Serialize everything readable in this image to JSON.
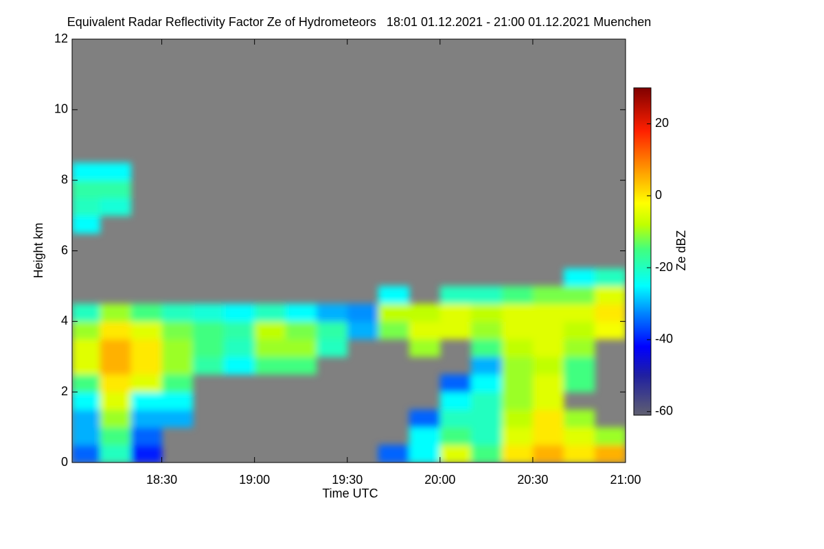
{
  "chart_data": {
    "type": "heatmap",
    "title": "Equivalent Radar Reflectivity Factor Ze of Hydrometeors   18:01 01.12.2021 - 21:00 01.12.2021 Muenchen",
    "x_label": "Time UTC",
    "y_label": "Height km",
    "colorbar_label": "Ze dBZ",
    "background": "#808080",
    "xlim": [
      1081,
      1260
    ],
    "xticks": [
      {
        "value": 1110,
        "label": "18:30"
      },
      {
        "value": 1140,
        "label": "19:00"
      },
      {
        "value": 1170,
        "label": "19:30"
      },
      {
        "value": 1200,
        "label": "20:00"
      },
      {
        "value": 1230,
        "label": "20:30"
      },
      {
        "value": 1260,
        "label": "21:00"
      }
    ],
    "ylim": [
      0,
      12
    ],
    "yticks": [
      0,
      2,
      4,
      6,
      8,
      10,
      12
    ],
    "zlim": [
      -61,
      30
    ],
    "zticks": [
      -60,
      -40,
      -20,
      0,
      20
    ],
    "colorscale": [
      [
        -61,
        "#606070"
      ],
      [
        -50,
        "#2020a0"
      ],
      [
        -42,
        "#0000ff"
      ],
      [
        -33,
        "#0080ff"
      ],
      [
        -25,
        "#00ffff"
      ],
      [
        -15,
        "#40ff80"
      ],
      [
        -8,
        "#c0ff00"
      ],
      [
        -2,
        "#ffff00"
      ],
      [
        8,
        "#ff9000"
      ],
      [
        18,
        "#ff2000"
      ],
      [
        30,
        "#800000"
      ]
    ],
    "x_bins": [
      1081,
      1090,
      1100,
      1110,
      1120,
      1130,
      1140,
      1150,
      1160,
      1170,
      1180,
      1190,
      1200,
      1210,
      1220,
      1230,
      1240,
      1250,
      1260
    ],
    "y_bins": [
      0,
      0.5,
      1,
      1.5,
      2,
      2.5,
      3,
      3.5,
      4,
      4.5,
      5,
      5.5,
      6,
      6.5,
      7,
      7.5,
      8,
      8.5,
      9
    ],
    "values": [
      [
        -35,
        -30,
        -30,
        -25,
        -15,
        -5,
        -5,
        -10,
        -20,
        null,
        null,
        null,
        null,
        -25,
        -20,
        -18,
        -25,
        null
      ],
      [
        -20,
        -15,
        -10,
        -5,
        0,
        5,
        5,
        0,
        -10,
        null,
        null,
        null,
        null,
        null,
        -22,
        -18,
        -25,
        null
      ],
      [
        -40,
        -35,
        -30,
        -25,
        -5,
        0,
        0,
        -5,
        -15,
        null,
        null,
        null,
        null,
        null,
        null,
        null,
        null,
        null
      ],
      [
        null,
        null,
        -30,
        -25,
        -15,
        -10,
        -10,
        -12,
        -20,
        null,
        null,
        null,
        null,
        null,
        null,
        null,
        null,
        null
      ],
      [
        null,
        null,
        null,
        null,
        null,
        -18,
        -15,
        -15,
        -22,
        null,
        null,
        null,
        null,
        null,
        null,
        null,
        null,
        null
      ],
      [
        null,
        null,
        null,
        null,
        null,
        -25,
        -20,
        -18,
        -25,
        null,
        null,
        null,
        null,
        null,
        null,
        null,
        null,
        null
      ],
      [
        null,
        null,
        null,
        null,
        null,
        -15,
        -10,
        -8,
        -20,
        null,
        null,
        null,
        null,
        null,
        null,
        null,
        null,
        null
      ],
      [
        null,
        null,
        null,
        null,
        null,
        -15,
        -10,
        -12,
        -25,
        null,
        null,
        null,
        null,
        null,
        null,
        null,
        null,
        null
      ],
      [
        null,
        null,
        null,
        null,
        null,
        null,
        -20,
        -18,
        -30,
        null,
        null,
        null,
        null,
        null,
        null,
        null,
        null,
        null
      ],
      [
        null,
        null,
        null,
        null,
        null,
        null,
        null,
        -30,
        -32,
        null,
        null,
        null,
        null,
        null,
        null,
        null,
        null,
        null
      ],
      [
        -35,
        null,
        null,
        null,
        null,
        null,
        null,
        -12,
        -8,
        -25,
        null,
        null,
        null,
        null,
        null,
        null,
        null,
        null
      ],
      [
        -25,
        -25,
        -35,
        null,
        null,
        null,
        -10,
        -5,
        -8,
        null,
        null,
        null,
        null,
        null,
        null,
        null,
        null,
        null
      ],
      [
        -5,
        -15,
        -20,
        -25,
        -35,
        null,
        null,
        -5,
        -5,
        -20,
        null,
        null,
        null,
        null,
        null,
        null,
        null,
        null
      ],
      [
        -15,
        -20,
        -20,
        -20,
        -25,
        -30,
        -15,
        -10,
        -8,
        -20,
        null,
        null,
        null,
        null,
        null,
        null,
        null,
        null
      ],
      [
        0,
        -5,
        -8,
        -10,
        -10,
        -10,
        -8,
        -5,
        -5,
        -15,
        null,
        null,
        null,
        null,
        null,
        null,
        null,
        null
      ],
      [
        5,
        0,
        0,
        -5,
        -5,
        -8,
        -5,
        -5,
        -5,
        -12,
        null,
        null,
        null,
        null,
        null,
        null,
        null,
        null
      ],
      [
        0,
        -5,
        -10,
        null,
        -15,
        -15,
        -10,
        -8,
        -5,
        -12,
        -25,
        null,
        null,
        null,
        null,
        null,
        null,
        null
      ],
      [
        5,
        -10,
        null,
        null,
        null,
        null,
        null,
        -3,
        0,
        -5,
        -20,
        null,
        null,
        null,
        null,
        null,
        null,
        null
      ]
    ]
  }
}
